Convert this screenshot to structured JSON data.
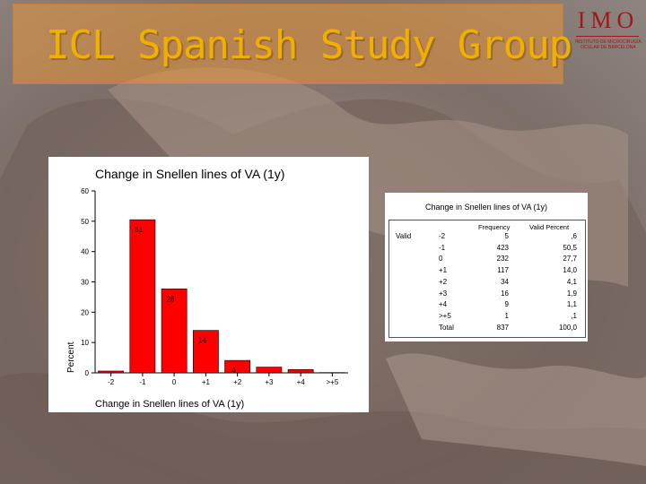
{
  "slide": {
    "title": "ICL Spanish Study Group",
    "logo": {
      "name": "IMO",
      "subtitle": "INSTITUTO DE MICROCIRUGÍA OCULAR DE BARCELONA"
    },
    "colors": {
      "title": "#f0b000",
      "title_box": "#e8963c",
      "bar": "#ff0000",
      "logo": "#a01818"
    }
  },
  "chart_data": [
    {
      "type": "bar",
      "title": "Change in Snellen lines of VA (1y)",
      "xlabel": "Change in Snellen lines of VA (1y)",
      "ylabel": "Percent",
      "categories": [
        "-2",
        "-1",
        "0",
        "+1",
        "+2",
        "+3",
        "+4",
        ">+5"
      ],
      "values": [
        0.6,
        50.5,
        27.7,
        14.0,
        4.1,
        1.9,
        1.1,
        0.1
      ],
      "data_labels": [
        "",
        "51",
        "28",
        "14",
        "4",
        "",
        "",
        ""
      ],
      "yticks": [
        "0",
        "10",
        "20",
        "30",
        "40",
        "50",
        "60"
      ],
      "ylim": [
        0,
        60
      ],
      "grid": false,
      "color": "#ff0000"
    },
    {
      "type": "table",
      "title": "Change in Snellen lines of VA (1y)",
      "group_label": "Valid",
      "columns": [
        "Frequency",
        "Valid Percent"
      ],
      "rows": [
        {
          "label": "-2",
          "frequency": "5",
          "percent": ",6"
        },
        {
          "label": "-1",
          "frequency": "423",
          "percent": "50,5"
        },
        {
          "label": "0",
          "frequency": "232",
          "percent": "27,7"
        },
        {
          "label": "+1",
          "frequency": "117",
          "percent": "14,0"
        },
        {
          "label": "+2",
          "frequency": "34",
          "percent": "4,1"
        },
        {
          "label": "+3",
          "frequency": "16",
          "percent": "1,9"
        },
        {
          "label": "+4",
          "frequency": "9",
          "percent": "1,1"
        },
        {
          "label": ">+5",
          "frequency": "1",
          "percent": ",1"
        },
        {
          "label": "Total",
          "frequency": "837",
          "percent": "100,0"
        }
      ]
    }
  ]
}
